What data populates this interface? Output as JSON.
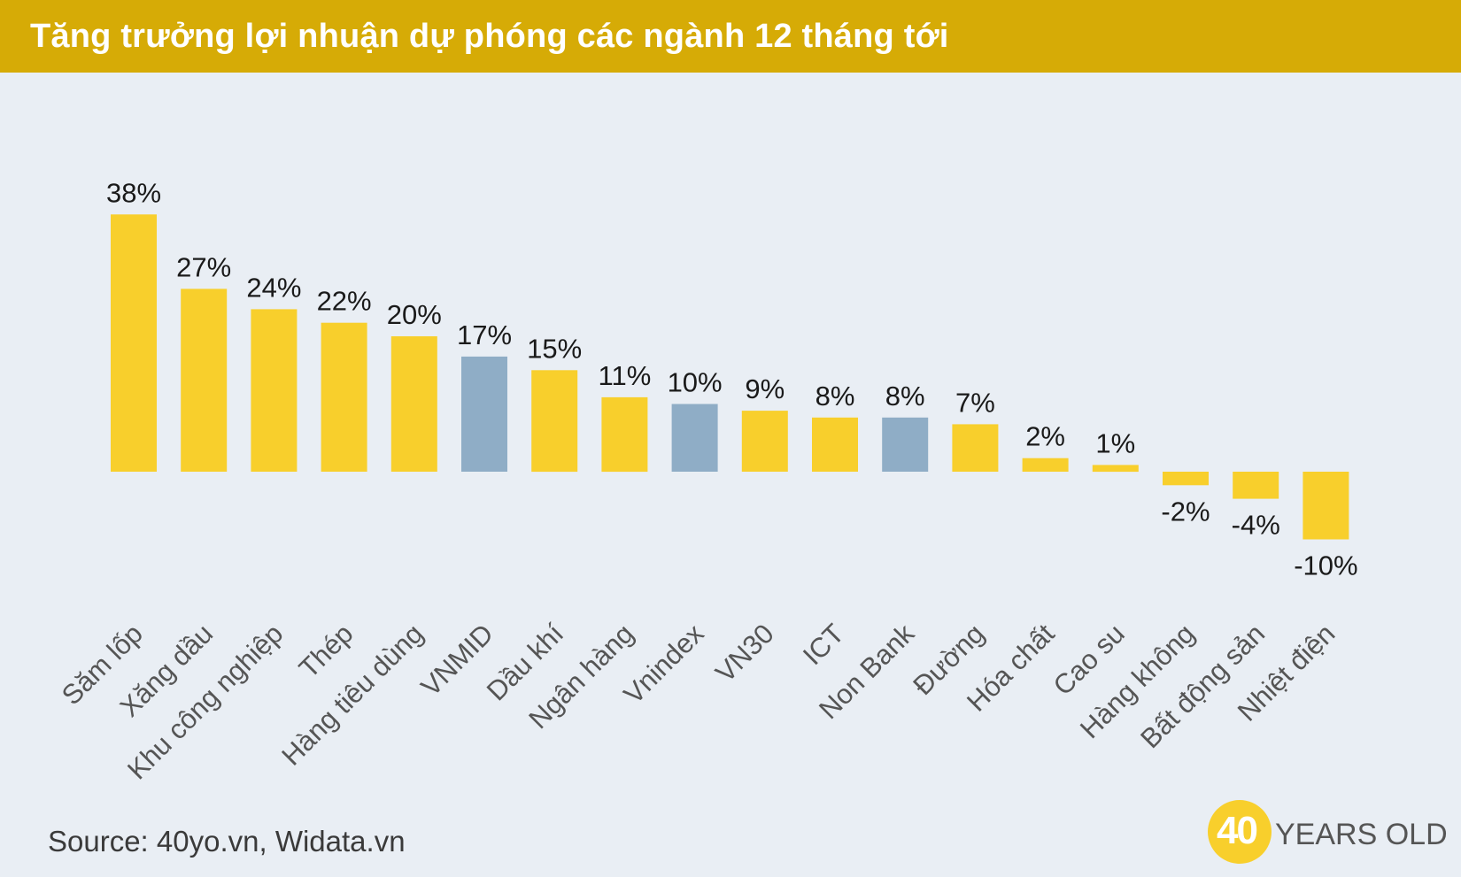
{
  "header": {
    "title": "Tăng trưởng lợi nhuận dự phóng các ngành 12 tháng tới"
  },
  "chart_data": {
    "type": "bar",
    "categories": [
      "Săm lốp",
      "Xăng dầu",
      "Khu công nghiệp",
      "Thép",
      "Hàng tiêu dùng",
      "VNMID",
      "Dầu khí",
      "Ngân hàng",
      "Vnindex",
      "VN30",
      "ICT",
      "Non Bank",
      "Đường",
      "Hóa chất",
      "Cao su",
      "Hàng không",
      "Bất động sản",
      "Nhiệt điện"
    ],
    "values": [
      38,
      27,
      24,
      22,
      20,
      17,
      15,
      11,
      10,
      9,
      8,
      8,
      7,
      2,
      1,
      -2,
      -4,
      -10
    ],
    "data_labels": [
      "38%",
      "27%",
      "24%",
      "22%",
      "20%",
      "17%",
      "15%",
      "11%",
      "10%",
      "9%",
      "8%",
      "8%",
      "7%",
      "2%",
      "1%",
      "-2%",
      "-4%",
      "-10%"
    ],
    "highlight": [
      false,
      false,
      false,
      false,
      false,
      true,
      false,
      false,
      true,
      false,
      false,
      true,
      false,
      false,
      false,
      false,
      false,
      false
    ],
    "bar_color": "#f8cf2c",
    "highlight_color": "#8fadc6",
    "title": "Tăng trưởng lợi nhuận dự phóng các ngành 12 tháng tới",
    "ylim": [
      -10,
      38
    ],
    "grid": false,
    "legend": "none"
  },
  "footer": {
    "source": "Source: 40yo.vn, Widata.vn",
    "logo_number": "40",
    "logo_text": "YEARS OLD"
  }
}
